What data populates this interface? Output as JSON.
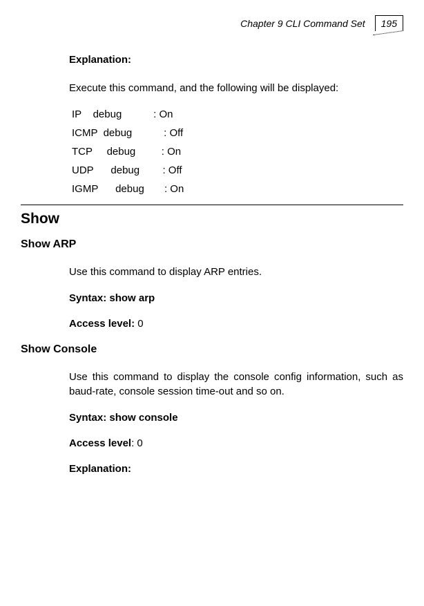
{
  "header": {
    "chapter": "Chapter 9 CLI Command Set",
    "page": "195"
  },
  "section1": {
    "explanationLabel": "Explanation:",
    "intro": "Execute this command, and the following will be displayed:",
    "rows": [
      "IP    debug           : On",
      "ICMP  debug           : Off",
      "TCP     debug         : On",
      "UDP      debug        : Off",
      "IGMP      debug       : On"
    ]
  },
  "show": {
    "title": "Show",
    "arp": {
      "title": "Show ARP",
      "desc": "Use this command to display ARP entries.",
      "syntaxLabel": "Syntax: show arp",
      "accessLabel": "Access level:",
      "accessValue": " 0"
    },
    "console": {
      "title": "Show Console",
      "desc": "Use this command to display the console config information, such as baud-rate, console session time-out and so on.",
      "syntaxLabel": "Syntax: show console",
      "accessLabel": "Access level",
      "accessValue": ": 0",
      "explanationLabel": "Explanation:"
    }
  }
}
